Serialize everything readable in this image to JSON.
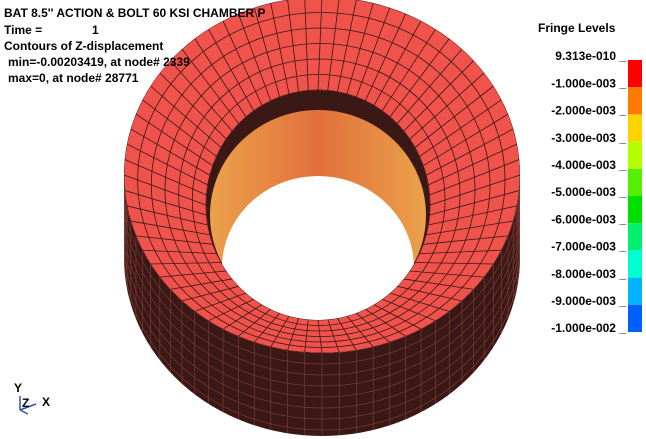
{
  "header": {
    "title": "BAT 8.5'' ACTION & BOLT 60 KSI CHAMBER P",
    "time_label": "Time =",
    "time_value": "1",
    "contours": "Contours of Z-displacement",
    "min": "min=-0.00203419, at node# 2339",
    "max": "max=0, at node# 28771"
  },
  "legend": {
    "title": "Fringe Levels",
    "levels": [
      "9.313e-010 _",
      "-1.000e-003 _",
      "-2.000e-003 _",
      "-3.000e-003 _",
      "-4.000e-003 _",
      "-5.000e-003 _",
      "-6.000e-003 _",
      "-7.000e-003 _",
      "-8.000e-003 _",
      "-9.000e-003 _",
      "-1.000e-002 _"
    ],
    "colors": [
      "#ff0000",
      "#ff7a00",
      "#ffd200",
      "#b4ff00",
      "#55f000",
      "#00e000",
      "#00f070",
      "#00ffd0",
      "#00b4ff",
      "#0060ff"
    ]
  },
  "triad": {
    "y": "Y",
    "z": "Z",
    "x": "X"
  }
}
